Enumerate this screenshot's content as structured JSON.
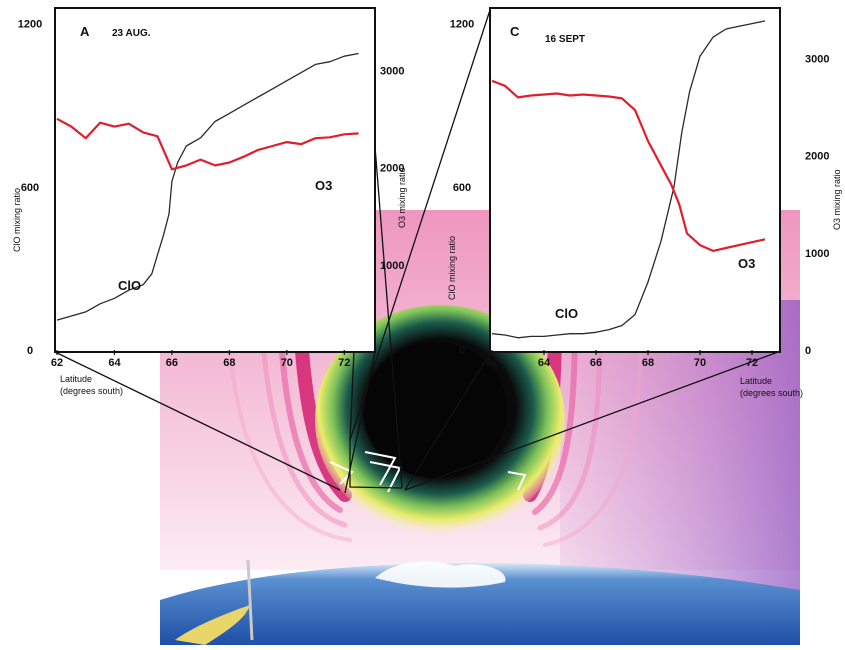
{
  "chart_data": [
    {
      "type": "line",
      "panel": "A",
      "date": "23 AUG.",
      "xlabel_line1": "Latitude",
      "xlabel_line2": "(degrees south)",
      "ylabel_left": "ClO mixing ratio",
      "ylabel_right": "O3 mixing ratio",
      "xlim": [
        62,
        73
      ],
      "ylim_left": [
        0,
        1250
      ],
      "ylim_right": [
        0,
        3500
      ],
      "x_ticks": [
        "62",
        "64",
        "66",
        "68",
        "70",
        "72"
      ],
      "y_left_ticks": [
        "0",
        "600",
        "1200"
      ],
      "y_right_ticks": [
        "1000",
        "2000",
        "3000"
      ],
      "series": [
        {
          "name": "ClO",
          "axis": "left",
          "color": "#2a2a2a",
          "x": [
            62.0,
            62.5,
            63.0,
            63.5,
            64.0,
            64.5,
            65.0,
            65.3,
            65.5,
            65.7,
            65.9,
            66.0,
            66.2,
            66.5,
            67.0,
            67.5,
            68.0,
            68.5,
            69.0,
            69.5,
            70.0,
            70.5,
            71.0,
            71.5,
            72.0,
            72.5
          ],
          "y": [
            110,
            125,
            140,
            170,
            190,
            220,
            240,
            280,
            350,
            420,
            500,
            620,
            690,
            750,
            780,
            840,
            870,
            900,
            930,
            960,
            990,
            1020,
            1050,
            1060,
            1080,
            1090
          ]
        },
        {
          "name": "O3",
          "axis": "right",
          "color": "#e01e2e",
          "x": [
            62.0,
            62.5,
            63.0,
            63.5,
            64.0,
            64.5,
            65.0,
            65.5,
            66.0,
            66.5,
            67.0,
            67.5,
            68.0,
            68.5,
            69.0,
            69.5,
            70.0,
            70.5,
            71.0,
            71.5,
            72.0,
            72.5
          ],
          "y": [
            2380,
            2300,
            2180,
            2340,
            2300,
            2330,
            2240,
            2200,
            1860,
            1900,
            1960,
            1900,
            1930,
            1990,
            2060,
            2100,
            2140,
            2120,
            2180,
            2190,
            2220,
            2230
          ]
        }
      ]
    },
    {
      "type": "line",
      "panel": "C",
      "date": "16 SEPT",
      "xlabel_line1": "Latitude",
      "xlabel_line2": "(degrees south)",
      "ylabel_left": "ClO mixing ratio",
      "ylabel_right": "O3 mixing ratio",
      "xlim": [
        62,
        73
      ],
      "ylim_left": [
        0,
        1250
      ],
      "ylim_right": [
        0,
        3500
      ],
      "x_ticks": [
        "62",
        "64",
        "66",
        "68",
        "70",
        "72"
      ],
      "y_left_ticks": [
        "0",
        "600",
        "1200"
      ],
      "y_right_ticks": [
        "0",
        "1000",
        "2000",
        "3000"
      ],
      "series": [
        {
          "name": "ClO",
          "axis": "left",
          "color": "#2a2a2a",
          "x": [
            62.0,
            62.5,
            63.0,
            63.5,
            64.0,
            64.5,
            65.0,
            65.5,
            66.0,
            66.5,
            67.0,
            67.5,
            68.0,
            68.5,
            69.0,
            69.3,
            69.6,
            70.0,
            70.5,
            71.0,
            71.5,
            72.0,
            72.5
          ],
          "y": [
            60,
            55,
            45,
            50,
            50,
            55,
            60,
            60,
            65,
            75,
            90,
            130,
            250,
            400,
            600,
            800,
            950,
            1080,
            1150,
            1180,
            1190,
            1200,
            1210
          ]
        },
        {
          "name": "O3",
          "axis": "right",
          "color": "#e01e2e",
          "x": [
            62.0,
            62.5,
            63.0,
            63.5,
            64.0,
            64.5,
            65.0,
            65.5,
            66.0,
            66.5,
            67.0,
            67.5,
            67.8,
            68.0,
            68.3,
            68.6,
            68.9,
            69.2,
            69.5,
            70.0,
            70.5,
            71.0,
            71.5,
            72.0,
            72.5
          ],
          "y": [
            2770,
            2720,
            2600,
            2620,
            2630,
            2640,
            2620,
            2630,
            2620,
            2610,
            2590,
            2470,
            2280,
            2150,
            2000,
            1850,
            1700,
            1500,
            1200,
            1080,
            1020,
            1050,
            1080,
            1110,
            1140
          ]
        }
      ]
    }
  ]
}
